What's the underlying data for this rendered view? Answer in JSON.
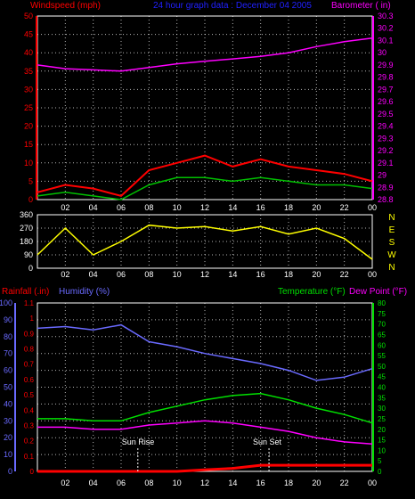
{
  "header": {
    "left_label": "Windspeed (mph)",
    "center_label": "24 hour graph data : December 04 2005",
    "right_label": "Barometer ( in)"
  },
  "footer": {
    "rain_label": "Rainfall (.in)",
    "humidity_label": "Humidity (%)",
    "temp_label": "Temperature (°F)",
    "dew_label": "Dew Point (°F)",
    "sunrise_label": "Sun Rise",
    "sunset_label": "Sun Set"
  },
  "colors": {
    "wind_gust": "#ff0000",
    "wind_avg": "#00c000",
    "wind_low": "#ffffff",
    "barometer": "#ff00ff",
    "direction": "#ffff00",
    "humidity": "#6a6aff",
    "temperature": "#00e000",
    "dewpoint": "#ff00ff",
    "rain": "#ff0000",
    "rain_axis": "#ff0000",
    "humidity_axis": "#6a6aff",
    "temp_axis": "#00e000",
    "grid": "#ffffff",
    "title_center": "#2020ff"
  },
  "x_ticks": [
    "02",
    "04",
    "06",
    "08",
    "10",
    "12",
    "14",
    "16",
    "18",
    "20",
    "22",
    "00"
  ],
  "chart_data": [
    {
      "type": "line",
      "title": "24 hour graph data : December 04 2005",
      "xlabel": "",
      "ylabel_left": "Windspeed (mph)",
      "ylabel_right": "Barometer ( in)",
      "x": [
        0,
        2,
        4,
        6,
        8,
        10,
        12,
        14,
        16,
        18,
        20,
        22,
        24
      ],
      "left_ylim": [
        0,
        50
      ],
      "left_ticks": [
        0,
        5,
        10,
        15,
        20,
        25,
        30,
        35,
        40,
        45,
        50
      ],
      "right_ylim": [
        28.8,
        30.3
      ],
      "right_ticks": [
        "28.8",
        "28.9",
        "29",
        "29.1",
        "29.2",
        "29.3",
        "29.4",
        "29.5",
        "29.6",
        "29.7",
        "29.8",
        "29.9",
        "30",
        "30.1",
        "30.2",
        "30.3"
      ],
      "series": [
        {
          "name": "Windspeed gust",
          "axis": "left",
          "values": [
            2,
            4,
            3,
            1,
            8,
            10,
            12,
            9,
            11,
            9,
            8,
            7,
            5
          ]
        },
        {
          "name": "Windspeed avg",
          "axis": "left",
          "values": [
            1,
            2,
            1,
            0,
            4,
            6,
            6,
            5,
            6,
            5,
            4,
            4,
            3
          ]
        },
        {
          "name": "Barometer",
          "axis": "right",
          "values": [
            29.9,
            29.87,
            29.86,
            29.85,
            29.88,
            29.91,
            29.93,
            29.95,
            29.97,
            30.0,
            30.05,
            30.09,
            30.12
          ]
        }
      ],
      "grid": true
    },
    {
      "type": "line",
      "ylabel_right": "N W S E N",
      "x": [
        0,
        2,
        4,
        6,
        8,
        10,
        12,
        14,
        16,
        18,
        20,
        22,
        24
      ],
      "ylim": [
        0,
        360
      ],
      "left_ticks": [
        0,
        90,
        180,
        270,
        360
      ],
      "right_ticks": [
        "N",
        "W",
        "S",
        "E",
        "N"
      ],
      "series": [
        {
          "name": "Wind direction",
          "values": [
            90,
            270,
            90,
            180,
            290,
            270,
            280,
            250,
            280,
            230,
            270,
            200,
            60
          ]
        }
      ],
      "grid": true
    },
    {
      "type": "line",
      "x": [
        0,
        2,
        4,
        6,
        8,
        10,
        12,
        14,
        16,
        18,
        20,
        22,
        24
      ],
      "rain_ylim": [
        0,
        1.1
      ],
      "rain_ticks": [
        "0",
        "0.1",
        "0.2",
        "0.3",
        "0.4",
        "0.5",
        "0.6",
        "0.7",
        "0.8",
        "0.9",
        "1",
        "1.1"
      ],
      "humidity_ylim": [
        0,
        100
      ],
      "humidity_ticks": [
        0,
        10,
        20,
        30,
        40,
        50,
        60,
        70,
        80,
        90,
        100
      ],
      "temp_ylim": [
        0,
        80
      ],
      "temp_ticks": [
        0,
        5,
        10,
        15,
        20,
        25,
        30,
        35,
        40,
        45,
        50,
        55,
        60,
        65,
        70,
        75,
        80
      ],
      "series": [
        {
          "name": "Humidity",
          "axis": "humidity",
          "values": [
            85,
            86,
            84,
            87,
            77,
            74,
            70,
            67,
            64,
            60,
            54,
            56,
            61
          ]
        },
        {
          "name": "Temperature",
          "axis": "temp",
          "values": [
            25,
            25,
            24,
            24,
            28,
            31,
            34,
            36,
            37,
            34,
            30,
            27,
            23
          ]
        },
        {
          "name": "Dew Point",
          "axis": "temp",
          "values": [
            21,
            21,
            20,
            20,
            22,
            23,
            24,
            23,
            21,
            19,
            16,
            14,
            13
          ]
        },
        {
          "name": "Rainfall",
          "axis": "rain",
          "values": [
            0,
            0,
            0,
            0,
            0,
            0,
            0.01,
            0.02,
            0.04,
            0.04,
            0.04,
            0.04,
            0.04
          ]
        }
      ],
      "annotations": [
        {
          "text": "Sun Rise",
          "x": 7.2
        },
        {
          "text": "Sun Set",
          "x": 16.6
        }
      ],
      "grid": true
    }
  ]
}
